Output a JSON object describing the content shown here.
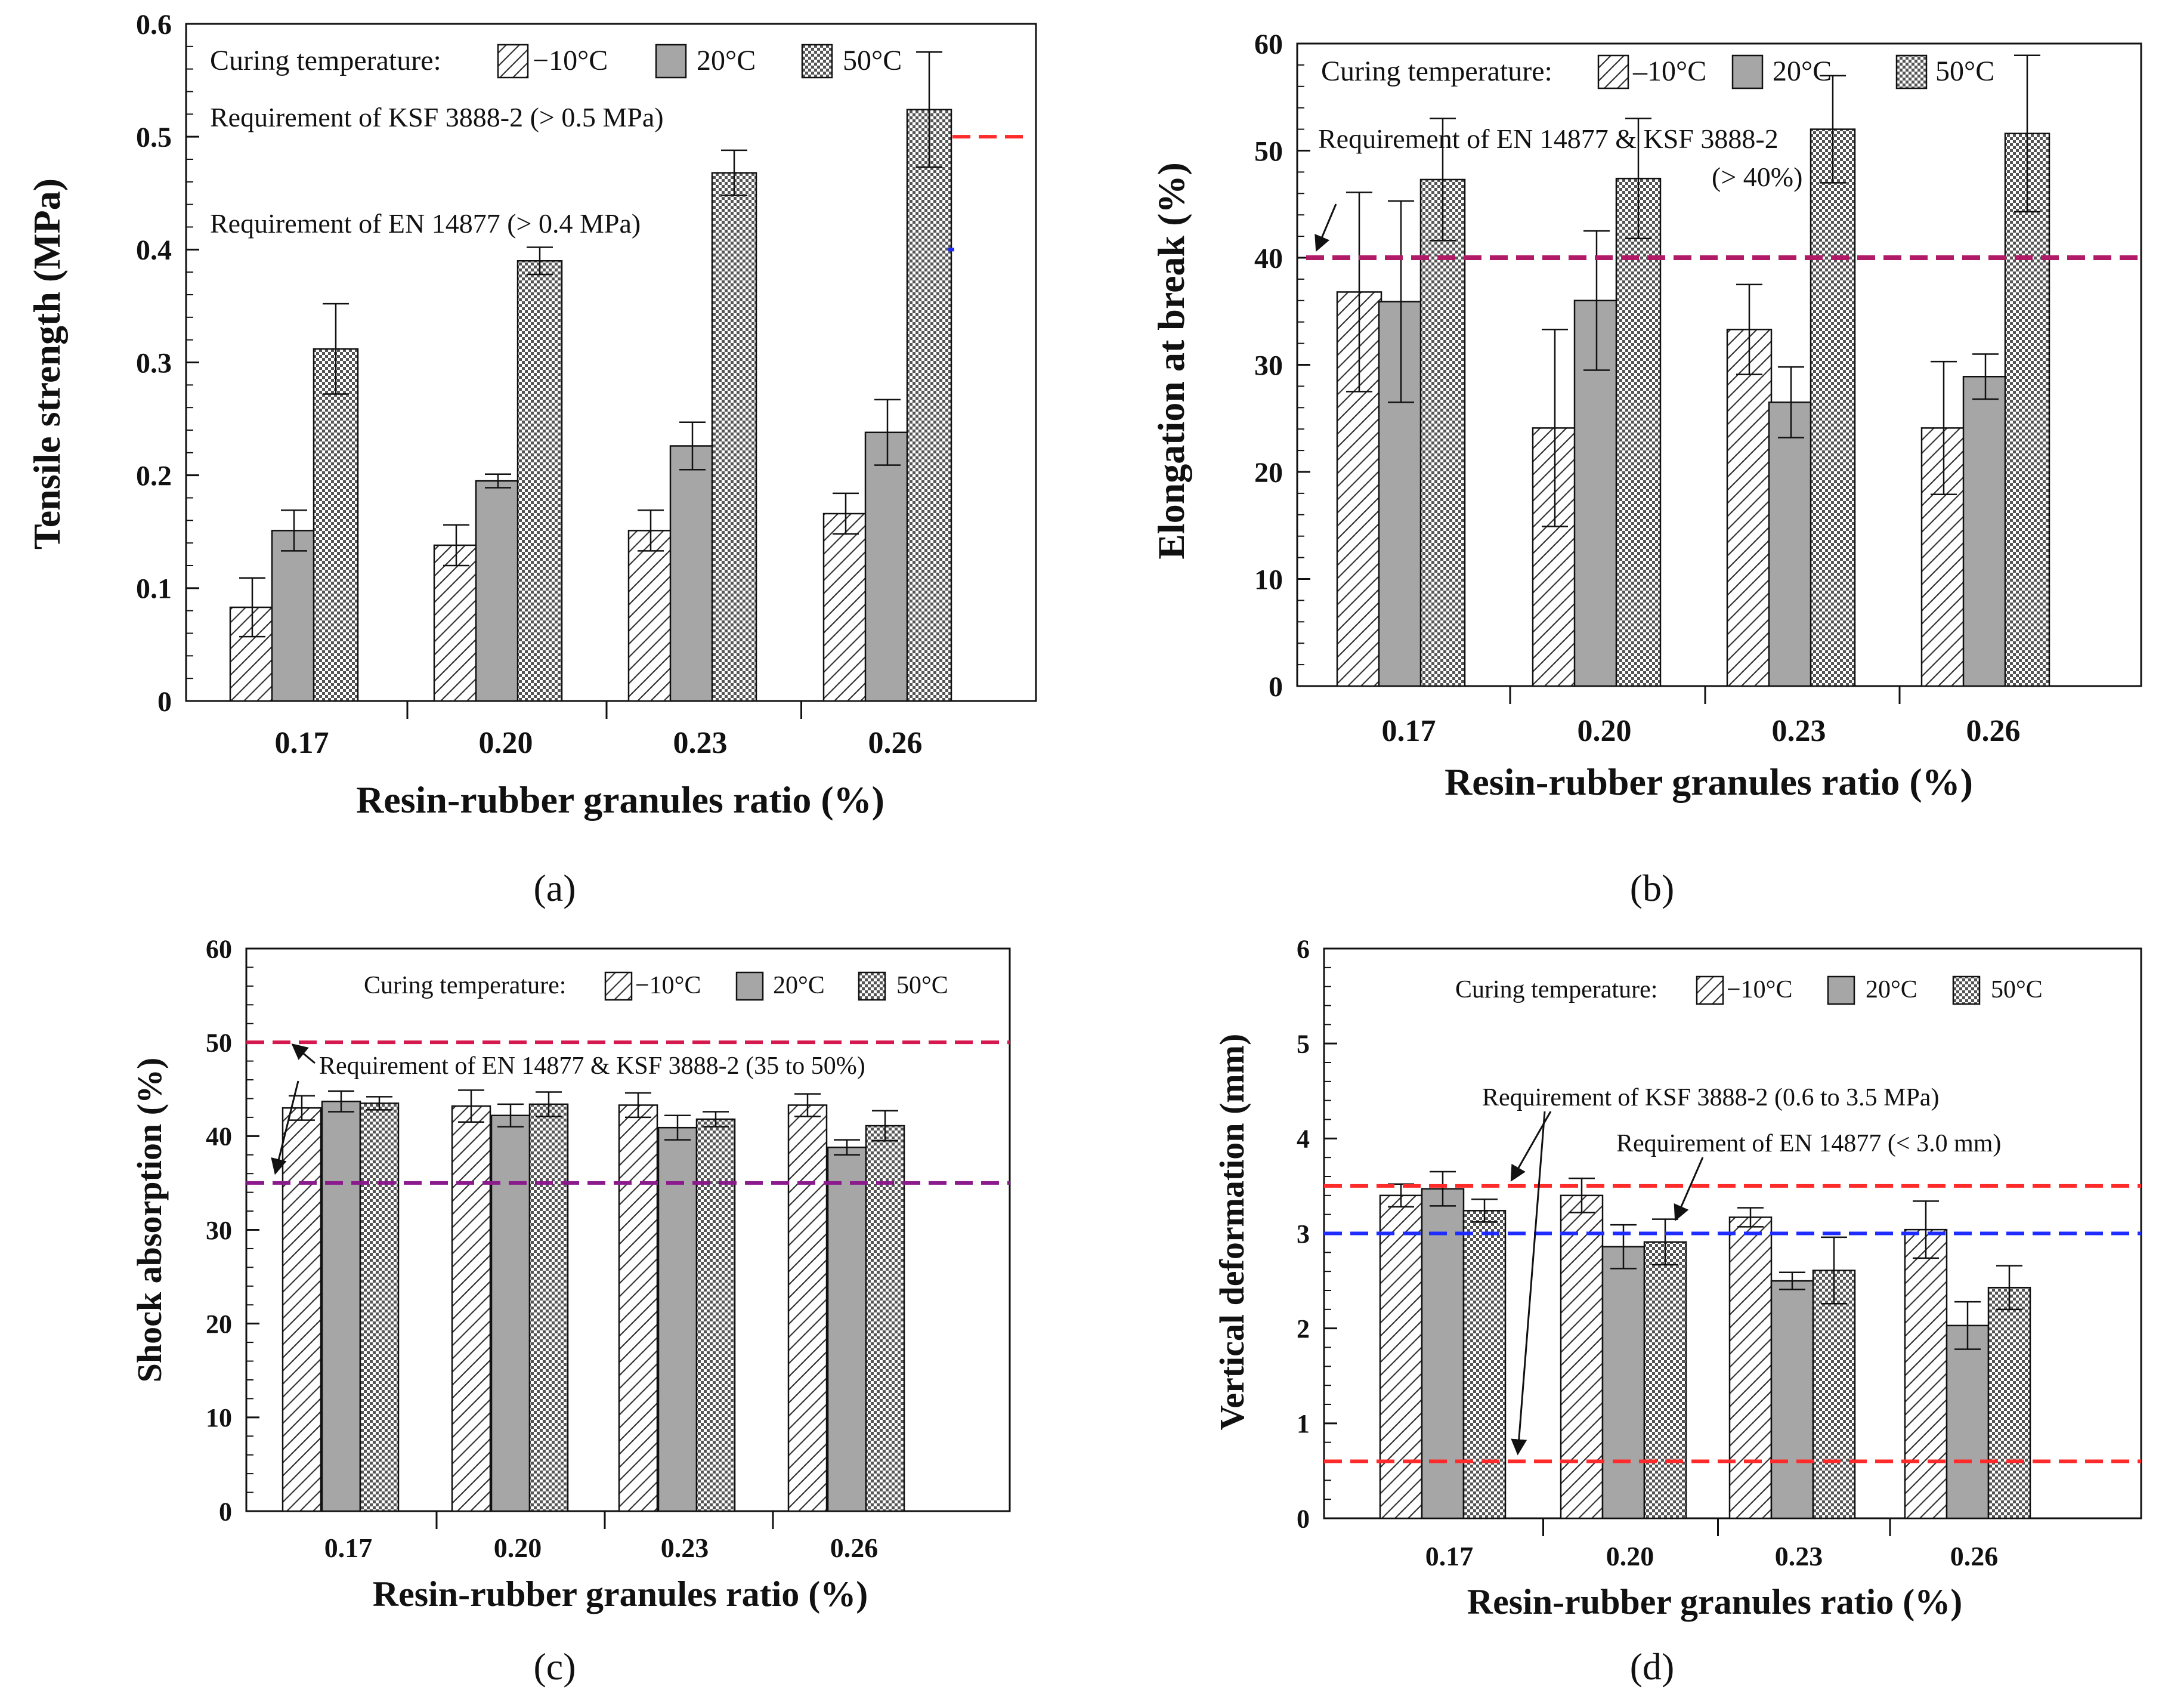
{
  "legend": {
    "title": "Curing temperature:",
    "series": [
      "−10°C",
      "20°C",
      "50°C"
    ],
    "series_alt": [
      "–10°C",
      "20°C",
      "50°C"
    ]
  },
  "colors": {
    "red_line": "#ff2a2a",
    "blue_line": "#1f2cff",
    "purple_line": "#b01a66",
    "gray_bar": "#a6a6a6"
  },
  "chart_data": [
    {
      "type": "bar",
      "panel_label": "(a)",
      "xlabel": "Resin-rubber granules ratio (%)",
      "ylabel": "Tensile strength (MPa)",
      "categories": [
        "0.17",
        "0.20",
        "0.23",
        "0.26"
      ],
      "ylim": [
        0,
        0.6
      ],
      "yticks": [
        "0",
        "0.1",
        "0.2",
        "0.3",
        "0.4",
        "0.5",
        "0.6"
      ],
      "series": [
        {
          "name": "−10°C",
          "values": [
            0.083,
            0.138,
            0.151,
            0.166
          ],
          "errors": [
            0.026,
            0.018,
            0.018,
            0.018
          ]
        },
        {
          "name": "20°C",
          "values": [
            0.151,
            0.195,
            0.226,
            0.238
          ],
          "errors": [
            0.018,
            0.006,
            0.021,
            0.029
          ]
        },
        {
          "name": "50°C",
          "values": [
            0.312,
            0.39,
            0.468,
            0.524
          ],
          "errors": [
            0.04,
            0.012,
            0.02,
            0.051
          ]
        }
      ],
      "reference_lines": [
        {
          "label": "Requirement of KSF 3888-2 (> 0.5 MPa)",
          "value": 0.5,
          "color": "#ff2a2a"
        },
        {
          "label": "Requirement of EN 14877 (> 0.4 MPa)",
          "value": 0.4,
          "color": "#1f2cff"
        }
      ]
    },
    {
      "type": "bar",
      "panel_label": "(b)",
      "xlabel": "Resin-rubber granules ratio (%)",
      "ylabel": "Elongation at break (%)",
      "categories": [
        "0.17",
        "0.20",
        "0.23",
        "0.26"
      ],
      "ylim": [
        0,
        60
      ],
      "yticks": [
        "0",
        "10",
        "20",
        "30",
        "40",
        "50",
        "60"
      ],
      "series": [
        {
          "name": "−10°C",
          "values": [
            36.8,
            24.1,
            33.3,
            24.1
          ],
          "errors": [
            9.3,
            9.2,
            4.2,
            6.2
          ]
        },
        {
          "name": "20°C",
          "values": [
            35.9,
            36.0,
            26.5,
            28.9
          ],
          "errors": [
            9.4,
            6.5,
            3.3,
            2.1
          ]
        },
        {
          "name": "50°C",
          "values": [
            47.3,
            47.4,
            52.0,
            51.6
          ],
          "errors": [
            5.7,
            5.6,
            5.0,
            7.3
          ]
        }
      ],
      "reference_lines": [
        {
          "label_lines": [
            "Requirement of EN 14877 & KSF 3888-2",
            "(> 40%)"
          ],
          "value": 40,
          "color": "#b01a66"
        }
      ]
    },
    {
      "type": "bar",
      "panel_label": "(c)",
      "xlabel": "Resin-rubber granules ratio (%)",
      "ylabel": "Shock absorption (%)",
      "categories": [
        "0.17",
        "0.20",
        "0.23",
        "0.26"
      ],
      "ylim": [
        0,
        60
      ],
      "yticks": [
        "0",
        "10",
        "20",
        "30",
        "40",
        "50",
        "60"
      ],
      "series": [
        {
          "name": "−10°C",
          "values": [
            43.0,
            43.2,
            43.3,
            43.3
          ],
          "errors": [
            1.3,
            1.7,
            1.3,
            1.2
          ]
        },
        {
          "name": "20°C",
          "values": [
            43.7,
            42.2,
            40.9,
            38.8
          ],
          "errors": [
            1.1,
            1.2,
            1.3,
            0.8
          ]
        },
        {
          "name": "50°C",
          "values": [
            43.5,
            43.4,
            41.8,
            41.1
          ],
          "errors": [
            0.7,
            1.3,
            0.8,
            1.6
          ]
        }
      ],
      "reference_lines": [
        {
          "label": "Requirement of EN 14877  & KSF 3888-2 (35 to 50%)",
          "value": 50,
          "color": "#d5184e"
        },
        {
          "value": 35,
          "color": "#8b1b8c"
        }
      ]
    },
    {
      "type": "bar",
      "panel_label": "(d)",
      "xlabel": "Resin-rubber granules ratio (%)",
      "ylabel": "Vertical deformation (mm)",
      "categories": [
        "0.17",
        "0.20",
        "0.23",
        "0.26"
      ],
      "ylim": [
        0,
        6
      ],
      "yticks": [
        "0",
        "1",
        "2",
        "3",
        "4",
        "5",
        "6"
      ],
      "series": [
        {
          "name": "−10°C",
          "values": [
            3.4,
            3.4,
            3.17,
            3.04
          ],
          "errors": [
            0.12,
            0.18,
            0.1,
            0.3
          ]
        },
        {
          "name": "20°C",
          "values": [
            3.47,
            2.86,
            2.5,
            2.03
          ],
          "errors": [
            0.18,
            0.23,
            0.09,
            0.25
          ]
        },
        {
          "name": "50°C",
          "values": [
            3.24,
            2.91,
            2.61,
            2.43
          ],
          "errors": [
            0.12,
            0.24,
            0.35,
            0.23
          ]
        }
      ],
      "reference_lines": [
        {
          "label": "Requirement of KSF 3888-2 (0.6 to 3.5 MPa)",
          "value": 3.5,
          "color": "#ff2a2a"
        },
        {
          "label": "Requirement of EN 14877 (< 3.0 mm)",
          "value": 3.0,
          "color": "#1f2cff"
        },
        {
          "value": 0.6,
          "color": "#ff2a2a"
        }
      ]
    }
  ]
}
